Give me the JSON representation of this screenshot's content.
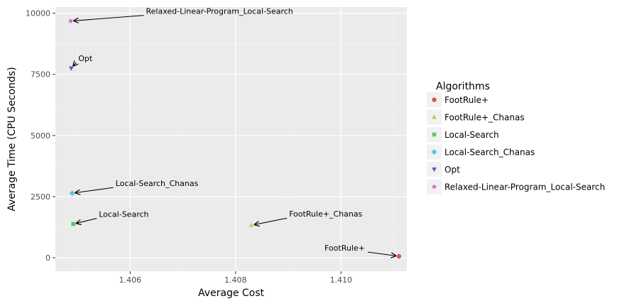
{
  "chart_data": {
    "type": "scatter",
    "xlabel": "Average Cost",
    "ylabel": "Average Time (CPU Seconds)",
    "xlim": [
      1.40458,
      1.41125
    ],
    "ylim": [
      -550,
      10250
    ],
    "x_ticks": [
      1.406,
      1.408,
      1.41
    ],
    "x_tick_labels": [
      "1.406",
      "1.408",
      "1.410"
    ],
    "y_ticks": [
      0,
      2500,
      5000,
      7500,
      10000
    ],
    "y_tick_labels": [
      "0",
      "2500",
      "5000",
      "7500",
      "10000"
    ],
    "grid": true,
    "legend": {
      "title": "Algorithms",
      "position": "right"
    },
    "series": [
      {
        "name": "FootRule+",
        "color": "#cf5c4f",
        "shape": "circle",
        "x": 1.4111,
        "y": 60,
        "label": "FootRule+",
        "label_dir": "left"
      },
      {
        "name": "FootRule+_Chanas",
        "color": "#c9cc55",
        "shape": "triangle-up",
        "x": 1.4083,
        "y": 1330,
        "label": "FootRule+_Chanas",
        "label_dir": "right"
      },
      {
        "name": "Local-Search",
        "color": "#5dc85d",
        "shape": "square",
        "x": 1.40492,
        "y": 1380,
        "label": "Local-Search",
        "label_dir": "right"
      },
      {
        "name": "Local-Search_Chanas",
        "color": "#58c7d2",
        "shape": "diamond",
        "x": 1.4049,
        "y": 2640,
        "label": "Local-Search_Chanas",
        "label_dir": "right"
      },
      {
        "name": "Opt",
        "color": "#6a54c6",
        "shape": "triangle-down",
        "x": 1.40488,
        "y": 7750,
        "label": "Opt",
        "label_dir": "right"
      },
      {
        "name": "Relaxed-Linear-Program_Local-Search",
        "color": "#cf5fc9",
        "shape": "star",
        "x": 1.40487,
        "y": 9680,
        "label": "Relaxed-Linear-Program_Local-Search",
        "label_dir": "right"
      }
    ]
  }
}
